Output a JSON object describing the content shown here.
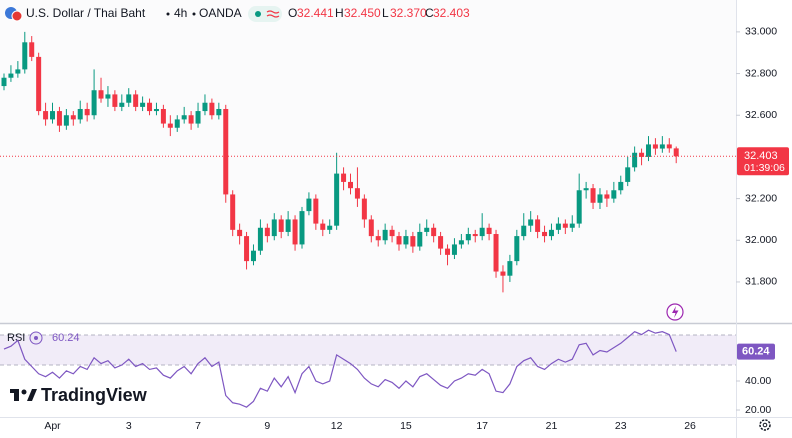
{
  "chart_data": {
    "type": "candlestick",
    "title": "U.S. Dollar / Thai Baht",
    "interval": "4h",
    "exchange": "OANDA",
    "ohlc_letters": {
      "open": "O",
      "high": "H",
      "low": "L",
      "close": "C"
    },
    "last_bar": {
      "open": {
        "value": 32.441,
        "label": "32.441"
      },
      "high": {
        "value": 32.45,
        "label": "32.450"
      },
      "low": {
        "value": 32.37,
        "label": "32.370"
      },
      "close": {
        "value": 32.403,
        "label": "32.403"
      }
    },
    "countdown": "01:39:06",
    "up_color": "#089981",
    "down_color": "#f23645",
    "categories": [
      null,
      null,
      null,
      null,
      null,
      null,
      null,
      "Apr",
      null,
      null,
      null,
      null,
      null,
      null,
      null,
      null,
      null,
      null,
      "3",
      null,
      null,
      null,
      null,
      null,
      null,
      null,
      null,
      null,
      "7",
      null,
      null,
      null,
      null,
      null,
      null,
      null,
      null,
      null,
      "9",
      null,
      null,
      null,
      null,
      null,
      null,
      null,
      null,
      null,
      "12",
      null,
      null,
      null,
      null,
      null,
      null,
      null,
      null,
      null,
      "15",
      null,
      null,
      null,
      null,
      null,
      null,
      null,
      null,
      null,
      null,
      "17",
      null,
      null,
      null,
      null,
      null,
      null,
      null,
      null,
      null,
      "21",
      null,
      null,
      null,
      null,
      null,
      null,
      null,
      null,
      null,
      "23",
      null,
      null,
      null,
      null,
      null,
      null,
      null,
      null,
      null,
      "26"
    ],
    "open": [
      32.74,
      32.78,
      32.8,
      32.82,
      32.95,
      32.88,
      32.62,
      32.58,
      32.62,
      32.55,
      32.6,
      32.58,
      32.63,
      32.6,
      32.72,
      32.68,
      32.7,
      32.64,
      32.66,
      32.7,
      32.64,
      32.66,
      32.62,
      32.63,
      32.56,
      32.54,
      32.58,
      32.6,
      32.56,
      32.62,
      32.66,
      32.6,
      32.63,
      32.22,
      32.05,
      32.02,
      31.9,
      31.95,
      32.06,
      32.02,
      32.1,
      32.04,
      32.1,
      31.98,
      32.14,
      32.2,
      32.08,
      32.05,
      32.07,
      32.32,
      32.28,
      32.25,
      32.2,
      32.1,
      32.02,
      32.0,
      32.05,
      32.02,
      31.98,
      32.02,
      31.97,
      32.04,
      32.06,
      32.02,
      31.96,
      31.93,
      31.98,
      32.0,
      32.03,
      32.02,
      32.06,
      32.03,
      31.85,
      31.83,
      31.9,
      32.02,
      32.07,
      32.1,
      32.04,
      32.02,
      32.05,
      32.08,
      32.06,
      32.08,
      32.24,
      32.25,
      32.18,
      32.22,
      32.2,
      32.24,
      32.28,
      32.35,
      32.42,
      32.4,
      32.46,
      32.44,
      32.46,
      32.441,
      null,
      null
    ],
    "high": [
      32.8,
      32.84,
      32.86,
      33.0,
      32.98,
      32.9,
      32.66,
      32.66,
      32.64,
      32.63,
      32.62,
      32.67,
      32.66,
      32.82,
      32.78,
      32.74,
      32.72,
      32.7,
      32.73,
      32.72,
      32.69,
      32.68,
      32.66,
      32.65,
      32.6,
      32.6,
      32.64,
      32.62,
      32.66,
      32.7,
      32.68,
      32.66,
      32.65,
      32.24,
      32.08,
      32.04,
      31.98,
      32.1,
      32.08,
      32.13,
      32.12,
      32.14,
      32.12,
      32.16,
      32.23,
      32.22,
      32.1,
      32.1,
      32.42,
      32.35,
      32.32,
      32.35,
      32.22,
      32.12,
      32.05,
      32.08,
      32.07,
      32.04,
      32.05,
      32.04,
      32.08,
      32.1,
      32.08,
      32.04,
      31.98,
      32.01,
      32.03,
      32.06,
      32.05,
      32.13,
      32.08,
      32.05,
      31.88,
      31.93,
      32.05,
      32.13,
      32.14,
      32.12,
      32.07,
      32.08,
      32.11,
      32.1,
      32.12,
      32.32,
      32.28,
      32.27,
      32.25,
      32.24,
      32.28,
      32.31,
      32.4,
      32.45,
      32.44,
      32.5,
      32.49,
      32.5,
      32.49,
      32.45,
      null,
      null
    ],
    "low": [
      32.72,
      32.76,
      32.78,
      32.8,
      32.86,
      32.6,
      32.55,
      32.56,
      32.52,
      32.53,
      32.55,
      32.56,
      32.57,
      32.58,
      32.66,
      32.64,
      32.62,
      32.62,
      32.64,
      32.62,
      32.62,
      32.6,
      32.6,
      32.54,
      32.5,
      32.52,
      32.56,
      32.53,
      32.54,
      32.6,
      32.58,
      32.58,
      32.18,
      32.02,
      31.98,
      31.86,
      31.88,
      31.93,
      31.99,
      32.0,
      32.01,
      32.02,
      31.95,
      31.96,
      32.12,
      32.05,
      32.02,
      32.03,
      32.05,
      32.24,
      32.22,
      32.16,
      32.06,
      31.99,
      31.97,
      31.98,
      31.99,
      31.95,
      31.96,
      31.94,
      31.95,
      32.02,
      31.99,
      31.93,
      31.88,
      31.91,
      31.96,
      31.98,
      31.99,
      32.0,
      32.0,
      31.82,
      31.75,
      31.8,
      31.88,
      32.0,
      32.04,
      32.01,
      31.99,
      32.0,
      32.03,
      32.03,
      32.04,
      32.06,
      32.2,
      32.15,
      32.15,
      32.16,
      32.18,
      32.22,
      32.26,
      32.33,
      32.36,
      32.38,
      32.41,
      32.42,
      32.42,
      32.37,
      null,
      null
    ],
    "close": [
      32.78,
      32.8,
      32.82,
      32.95,
      32.88,
      32.62,
      32.58,
      32.62,
      32.55,
      32.6,
      32.58,
      32.63,
      32.6,
      32.72,
      32.68,
      32.7,
      32.64,
      32.66,
      32.7,
      32.64,
      32.66,
      32.62,
      32.63,
      32.56,
      32.54,
      32.58,
      32.6,
      32.56,
      32.62,
      32.66,
      32.6,
      32.63,
      32.22,
      32.05,
      32.02,
      31.9,
      31.95,
      32.06,
      32.02,
      32.1,
      32.04,
      32.1,
      31.98,
      32.14,
      32.2,
      32.08,
      32.05,
      32.07,
      32.32,
      32.28,
      32.25,
      32.2,
      32.1,
      32.02,
      32.0,
      32.05,
      32.02,
      31.98,
      32.02,
      31.97,
      32.04,
      32.06,
      32.02,
      31.96,
      31.93,
      31.98,
      32.0,
      32.03,
      32.02,
      32.06,
      32.03,
      31.85,
      31.83,
      31.9,
      32.02,
      32.07,
      32.1,
      32.04,
      32.02,
      32.05,
      32.08,
      32.06,
      32.08,
      32.24,
      32.25,
      32.18,
      32.22,
      32.2,
      32.24,
      32.28,
      32.35,
      32.42,
      32.4,
      32.46,
      32.44,
      32.46,
      32.441,
      32.403,
      null,
      null
    ],
    "ylim": [
      31.603,
      33.153
    ],
    "yticks": [
      {
        "value": 31.8,
        "label": "31.800"
      },
      {
        "value": 32.0,
        "label": "32.000"
      },
      {
        "value": 32.2,
        "label": "32.200"
      },
      {
        "value": 32.6,
        "label": "32.600"
      },
      {
        "value": 32.8,
        "label": "32.800"
      },
      {
        "value": 33.0,
        "label": "33.000"
      }
    ],
    "rsi": {
      "type": "line",
      "name": "RSI",
      "color": "#7e57c2",
      "last": 60.24,
      "values": [
        62,
        64,
        68,
        55,
        50,
        45,
        43,
        46,
        42,
        47,
        45,
        50,
        48,
        56,
        52,
        54,
        49,
        51,
        55,
        50,
        52,
        48,
        49,
        44,
        42,
        47,
        50,
        45,
        52,
        56,
        50,
        53,
        30,
        25,
        24,
        22,
        26,
        35,
        33,
        42,
        36,
        43,
        32,
        45,
        50,
        40,
        38,
        40,
        58,
        55,
        52,
        48,
        42,
        38,
        36,
        41,
        39,
        35,
        40,
        36,
        43,
        45,
        41,
        37,
        35,
        40,
        42,
        45,
        44,
        48,
        45,
        33,
        32,
        38,
        50,
        54,
        56,
        50,
        48,
        52,
        55,
        53,
        55,
        65,
        66,
        58,
        61,
        60,
        63,
        66,
        70,
        74,
        72,
        75,
        73,
        74,
        72,
        60.24,
        null,
        null
      ],
      "ylim": [
        14.5,
        78.6
      ],
      "yticks": [
        {
          "value": 20,
          "label": "20.00"
        },
        {
          "value": 40,
          "label": "40.00"
        }
      ]
    },
    "brand": "TradingView"
  }
}
